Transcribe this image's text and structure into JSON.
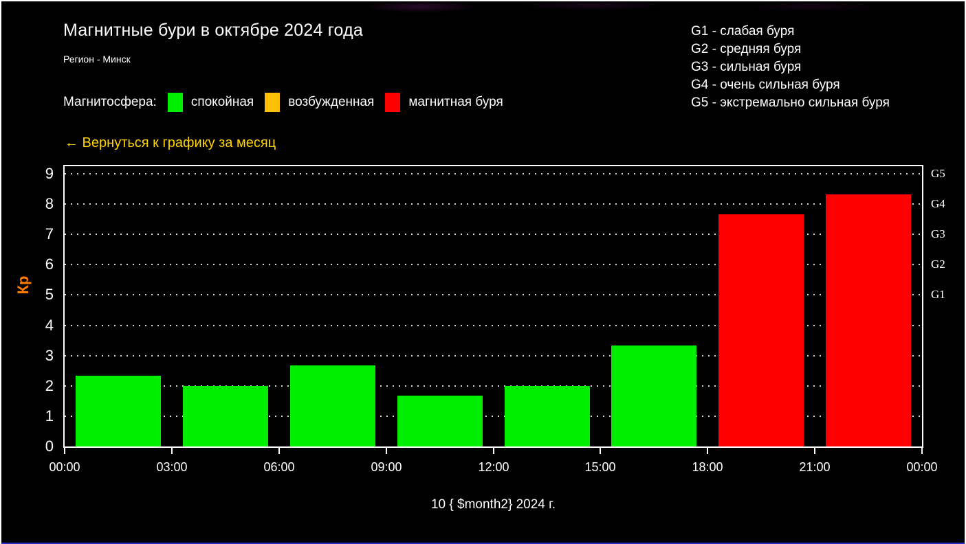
{
  "header": {
    "title": "Магнитные бури в октябре 2024 года",
    "subtitle": "Регион - Минск"
  },
  "storm_scale": {
    "items": [
      "G1 - слабая буря",
      "G2 - средняя буря",
      "G3 - сильная буря",
      "G4 - очень сильная буря",
      "G5 - экстремально сильная буря"
    ]
  },
  "legend": {
    "label": "Магнитосфера:",
    "items": [
      {
        "label": "спокойная",
        "color": "#00ee00"
      },
      {
        "label": "возбужденная",
        "color": "#ffc107"
      },
      {
        "label": "магнитная буря",
        "color": "#ff0000"
      }
    ]
  },
  "back_link": {
    "label": "← Вернуться к графику за месяц",
    "color": "#ffd400"
  },
  "chart_data": {
    "type": "bar",
    "caption": "10 { $month2} 2024 г.",
    "ylabel": "Кр",
    "ylabel_color": "#ff7c00",
    "ylim": [
      0,
      9.25
    ],
    "y_ticks": [
      0,
      1,
      2,
      3,
      4,
      5,
      6,
      7,
      8,
      9
    ],
    "x_tick_labels": [
      "00:00",
      "03:00",
      "06:00",
      "09:00",
      "12:00",
      "15:00",
      "18:00",
      "21:00",
      "00:00"
    ],
    "grid": "horizontal dotted lines at each integer Kp",
    "legend_position": "top",
    "right_axis_labels": [
      {
        "label": "G1",
        "kp": 5
      },
      {
        "label": "G2",
        "kp": 6
      },
      {
        "label": "G3",
        "kp": 7
      },
      {
        "label": "G4",
        "kp": 8
      },
      {
        "label": "G5",
        "kp": 9
      }
    ],
    "bars": [
      {
        "start": "00:00",
        "end": "03:00",
        "value": 2.33,
        "status": "спокойная",
        "color": "#00ee00"
      },
      {
        "start": "03:00",
        "end": "06:00",
        "value": 2.0,
        "status": "спокойная",
        "color": "#00ee00"
      },
      {
        "start": "06:00",
        "end": "09:00",
        "value": 2.67,
        "status": "спокойная",
        "color": "#00ee00"
      },
      {
        "start": "09:00",
        "end": "12:00",
        "value": 1.67,
        "status": "спокойная",
        "color": "#00ee00"
      },
      {
        "start": "12:00",
        "end": "15:00",
        "value": 2.0,
        "status": "спокойная",
        "color": "#00ee00"
      },
      {
        "start": "15:00",
        "end": "18:00",
        "value": 3.33,
        "status": "спокойная",
        "color": "#00ee00"
      },
      {
        "start": "18:00",
        "end": "21:00",
        "value": 7.67,
        "status": "магнитная буря",
        "color": "#ff0000"
      },
      {
        "start": "21:00",
        "end": "00:00",
        "value": 8.33,
        "status": "магнитная буря",
        "color": "#ff0000"
      }
    ]
  }
}
